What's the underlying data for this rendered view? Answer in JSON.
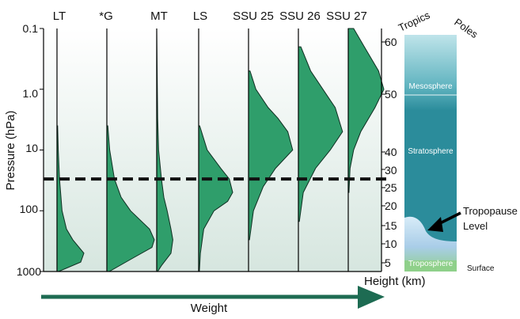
{
  "chart_data": {
    "type": "area",
    "title": "",
    "ylabel": "Pressure (hPa)",
    "y_scale": "log",
    "ylim": [
      1000,
      0.1
    ],
    "y_ticks": [
      "0.1",
      "1.0",
      "10",
      "100",
      "1000"
    ],
    "xlabel": "Weight",
    "height_axis": {
      "label": "Height (km)",
      "ticks": [
        "5",
        "10",
        "15",
        "20",
        "25",
        "30",
        "40",
        "50",
        "60"
      ]
    },
    "reference_line_pressure": 30,
    "fill_color": "#2f9e6b",
    "series": [
      {
        "name": "LT",
        "pressure": [
          4,
          10,
          30,
          100,
          200,
          300,
          500,
          700,
          1000
        ],
        "weight": [
          0.02,
          0.04,
          0.08,
          0.16,
          0.3,
          0.5,
          0.85,
          0.75,
          0.05
        ]
      },
      {
        "name": "*G",
        "pressure": [
          4,
          10,
          30,
          60,
          100,
          200,
          300,
          400,
          600,
          1000
        ],
        "weight": [
          0.02,
          0.06,
          0.16,
          0.3,
          0.5,
          0.9,
          1.0,
          0.95,
          0.55,
          0.05
        ]
      },
      {
        "name": "MT",
        "pressure": [
          0.1,
          3,
          10,
          30,
          60,
          100,
          200,
          300,
          500,
          800,
          1000
        ],
        "weight": [
          0,
          0.02,
          0.04,
          0.1,
          0.15,
          0.22,
          0.3,
          0.34,
          0.3,
          0.1,
          0.02
        ]
      },
      {
        "name": "LS",
        "pressure": [
          4,
          10,
          20,
          30,
          50,
          70,
          100,
          200,
          500,
          1000
        ],
        "weight": [
          0.03,
          0.25,
          0.65,
          0.9,
          1.0,
          0.85,
          0.45,
          0.15,
          0.05,
          0.02
        ]
      },
      {
        "name": "SSU 25",
        "pressure": [
          0.5,
          1,
          2,
          3,
          5,
          10,
          20,
          40,
          100,
          300
        ],
        "weight": [
          0.03,
          0.15,
          0.4,
          0.6,
          0.8,
          0.9,
          0.55,
          0.3,
          0.1,
          0.02
        ]
      },
      {
        "name": "SSU 26",
        "pressure": [
          0.2,
          0.5,
          1,
          2,
          5,
          10,
          20,
          50,
          150
        ],
        "weight": [
          0.05,
          0.25,
          0.5,
          0.75,
          0.9,
          0.65,
          0.35,
          0.1,
          0.02
        ]
      },
      {
        "name": "SSU 27",
        "pressure": [
          0.1,
          0.2,
          0.5,
          1,
          2,
          5,
          10,
          20,
          50
        ],
        "weight": [
          0.15,
          0.45,
          0.85,
          1.0,
          0.75,
          0.35,
          0.15,
          0.05,
          0.02
        ]
      }
    ]
  },
  "atmosphere": {
    "header_left": "Tropics",
    "header_right": "Poles",
    "layers": [
      "Mesosphere",
      "Stratosphere",
      "Troposphere"
    ],
    "tropopause_label_line1": "Tropopause",
    "tropopause_label_line2": "Level",
    "surface_label": "Surface"
  }
}
